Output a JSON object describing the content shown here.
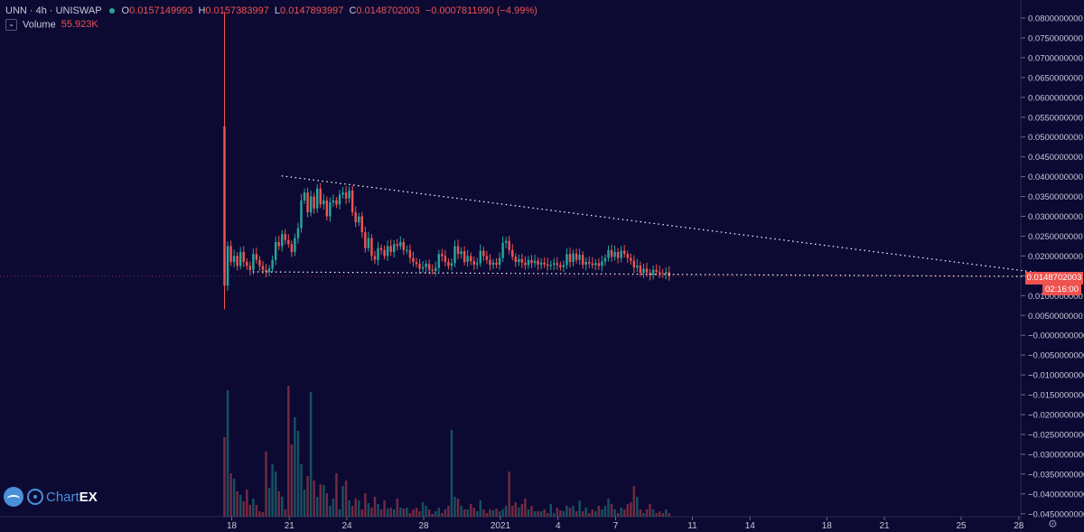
{
  "legend": {
    "symbol": "UNN · 4h · UNISWAP",
    "open_label": "O",
    "open": "0.0157149993",
    "high_label": "H",
    "high": "0.0157383997",
    "low_label": "L",
    "low": "0.0147893997",
    "close_label": "C",
    "close": "0.0148702003",
    "change": "−0.0007811990 (−4.99%)",
    "volume_label": "Volume",
    "volume_value": "55.923K"
  },
  "branding": {
    "part1": "Chart",
    "part2": "EX"
  },
  "last_price": "0.0148702003",
  "countdown": "02:16:00",
  "colors": {
    "background": "#0c0a33",
    "up": "#26a69a",
    "down": "#ef5350",
    "text": "#c8c8d8",
    "grid_axis": "#2a2850"
  },
  "icons": {
    "settings": "gear-icon",
    "logo": "chartex-logo-icon"
  },
  "chart_data": {
    "type": "candlestick",
    "interval": "4h",
    "y_axis": {
      "range": [
        -0.045,
        0.08
      ],
      "tick_labels": [
        "0.0800000000",
        "0.0750000000",
        "0.0700000000",
        "0.0650000000",
        "0.0600000000",
        "0.0550000000",
        "0.0500000000",
        "0.0450000000",
        "0.0400000000",
        "0.0350000000",
        "0.0300000000",
        "0.0250000000",
        "0.0200000000",
        "0.0150000000",
        "0.0100000000",
        "0.0050000000",
        "−0.0000000000",
        "−0.0050000000",
        "−0.0100000000",
        "−0.0150000000",
        "−0.0200000000",
        "−0.0250000000",
        "−0.0300000000",
        "−0.0350000000",
        "−0.0400000000",
        "−0.0450000000"
      ],
      "tick_values": [
        0.08,
        0.075,
        0.07,
        0.065,
        0.06,
        0.055,
        0.05,
        0.045,
        0.04,
        0.035,
        0.03,
        0.025,
        0.02,
        0.015,
        0.01,
        0.005,
        0,
        -0.005,
        -0.01,
        -0.015,
        -0.02,
        -0.025,
        -0.03,
        -0.035,
        -0.04,
        -0.045
      ]
    },
    "x_axis": {
      "tick_labels": [
        "18",
        "21",
        "24",
        "28",
        "2021",
        "4",
        "7",
        "11",
        "14",
        "18",
        "21",
        "25",
        "28"
      ],
      "tick_days": [
        0,
        3,
        6,
        10,
        14,
        17,
        20,
        24,
        27,
        31,
        34,
        38,
        41
      ]
    },
    "day_start": 0,
    "day_end": 42.5,
    "candles_per_day": 6,
    "closes": [
      0.0125,
      0.0225,
      0.0185,
      0.02,
      0.0175,
      0.021,
      0.0185,
      0.0175,
      0.0165,
      0.0205,
      0.019,
      0.0175,
      0.0165,
      0.016,
      0.0168,
      0.019,
      0.0235,
      0.0225,
      0.0255,
      0.024,
      0.023,
      0.021,
      0.0245,
      0.027,
      0.034,
      0.036,
      0.031,
      0.035,
      0.032,
      0.037,
      0.033,
      0.034,
      0.03,
      0.0335,
      0.034,
      0.033,
      0.0355,
      0.036,
      0.0345,
      0.0365,
      0.031,
      0.0285,
      0.03,
      0.026,
      0.022,
      0.0245,
      0.02,
      0.019,
      0.022,
      0.0215,
      0.02,
      0.0225,
      0.021,
      0.023,
      0.0225,
      0.0235,
      0.0215,
      0.0215,
      0.0195,
      0.0185,
      0.018,
      0.0168,
      0.0172,
      0.018,
      0.0165,
      0.0162,
      0.017,
      0.0205,
      0.02,
      0.0185,
      0.0175,
      0.0182,
      0.0225,
      0.0205,
      0.0212,
      0.0185,
      0.02,
      0.0187,
      0.0178,
      0.0182,
      0.0213,
      0.02,
      0.019,
      0.0178,
      0.0183,
      0.0178,
      0.0195,
      0.0233,
      0.0238,
      0.0215,
      0.0198,
      0.0185,
      0.0192,
      0.0183,
      0.0177,
      0.019,
      0.0182,
      0.0188,
      0.0178,
      0.0183,
      0.0179,
      0.0175,
      0.0178,
      0.0182,
      0.0177,
      0.0172,
      0.0177,
      0.0205,
      0.0185,
      0.0206,
      0.019,
      0.0203,
      0.0178,
      0.0185,
      0.0181,
      0.0177,
      0.0182,
      0.0175,
      0.0186,
      0.0195,
      0.0215,
      0.0198,
      0.021,
      0.0195,
      0.0213,
      0.0205,
      0.0195,
      0.0188,
      0.0171,
      0.0176,
      0.0157,
      0.0168,
      0.0158,
      0.0152,
      0.0165,
      0.016,
      0.0157,
      0.0155,
      0.0159,
      0.0149
    ],
    "open_first": 0.0527,
    "high_first": 0.0815,
    "low_first": 0.0065,
    "volume": {
      "last_value": "55.923K",
      "series": [
        88,
        140,
        48,
        42,
        28,
        24,
        17,
        30,
        13,
        20,
        13,
        6,
        5,
        72,
        32,
        58,
        50,
        28,
        22,
        8,
        145,
        80,
        110,
        95,
        58,
        30,
        45,
        138,
        40,
        22,
        36,
        35,
        26,
        12,
        20,
        48,
        8,
        34,
        40,
        18,
        12,
        20,
        18,
        8,
        26,
        15,
        10,
        22,
        14,
        8,
        18,
        9,
        10,
        8,
        20,
        10,
        9,
        10,
        4,
        8,
        10,
        6,
        16,
        12,
        8,
        3,
        6,
        10,
        4,
        8,
        12,
        96,
        22,
        20,
        12,
        8,
        8,
        14,
        10,
        6,
        18,
        8,
        4,
        8,
        7,
        9,
        6,
        8,
        12,
        50,
        12,
        16,
        10,
        14,
        20,
        8,
        12,
        6,
        6,
        6,
        8,
        4,
        14,
        4,
        10,
        7,
        6,
        12,
        10,
        12,
        6,
        18,
        6,
        10,
        4,
        8,
        6,
        12,
        8,
        12,
        20,
        14,
        8,
        4,
        10,
        8,
        14,
        16,
        34,
        22,
        8,
        4,
        8,
        14,
        8,
        4,
        6,
        4,
        8,
        4
      ]
    },
    "trendlines": [
      {
        "name": "upper",
        "points": [
          [
            2.6,
            0.0402
          ],
          [
            42.5,
            0.0155
          ]
        ]
      },
      {
        "name": "lower",
        "points": [
          [
            1.1,
            0.016
          ],
          [
            42.5,
            0.0148
          ]
        ]
      }
    ]
  }
}
